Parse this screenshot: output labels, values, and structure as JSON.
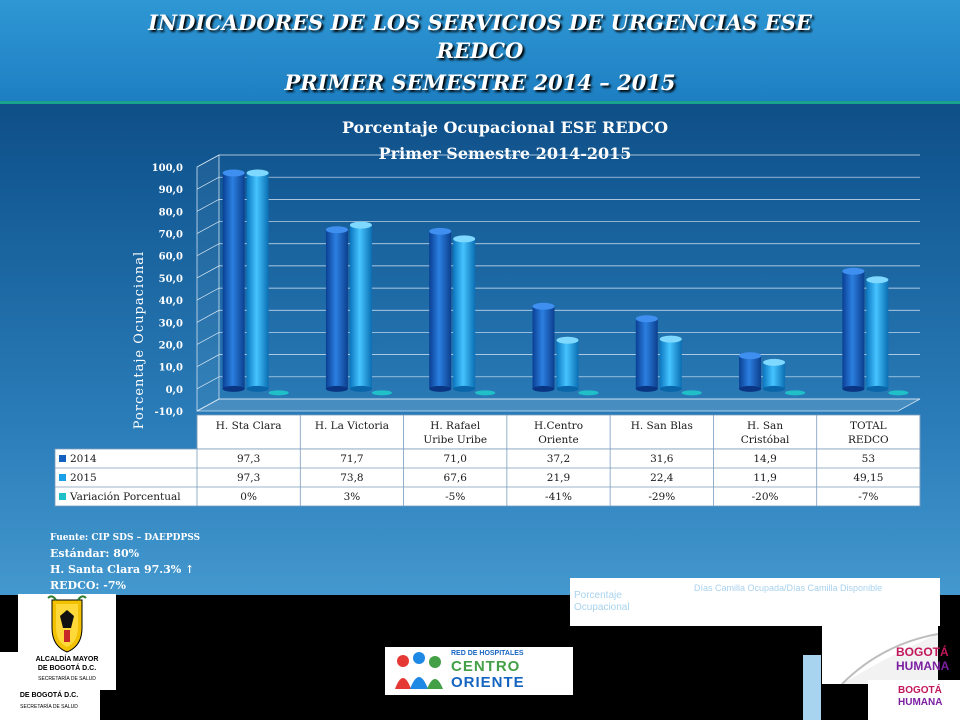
{
  "slide": {
    "title_lines": [
      "INDICADORES DE LOS SERVICIOS DE URGENCIAS ESE",
      "REDCO",
      "PRIMER SEMESTRE 2014 – 2015"
    ],
    "colors": {
      "series_2014": "#1460c0",
      "series_2015": "#1aa0e8",
      "series_var": "#20c0c8",
      "title_band": "#1d7fc2",
      "accent_line": "#17a38c"
    }
  },
  "chart_data": {
    "type": "bar",
    "title": "Porcentaje Ocupacional  ESE REDCO",
    "subtitle": "Primer Semestre 2014-2015",
    "ylabel": "Porcentaje Ocupacional",
    "xlabel": "",
    "ylim": [
      -10,
      100
    ],
    "yticks": [
      "100,0",
      "90,0",
      "80,0",
      "70,0",
      "60,0",
      "50,0",
      "40,0",
      "30,0",
      "20,0",
      "10,0",
      "0,0",
      "-10,0"
    ],
    "categories": [
      [
        "H. Sta Clara"
      ],
      [
        "H. La Victoria"
      ],
      [
        "H. Rafael",
        "Uribe Uribe"
      ],
      [
        "H.Centro",
        "Oriente"
      ],
      [
        "H. San Blas"
      ],
      [
        "H. San",
        "Cristóbal"
      ],
      [
        "TOTAL",
        "REDCO"
      ]
    ],
    "series": [
      {
        "name": "2014",
        "values": [
          97.3,
          71.7,
          71.0,
          37.2,
          31.6,
          14.9,
          53
        ],
        "labels": [
          "97,3",
          "71,7",
          "71,0",
          "37,2",
          "31,6",
          "14,9",
          "53"
        ]
      },
      {
        "name": "2015",
        "values": [
          97.3,
          73.8,
          67.6,
          21.9,
          22.4,
          11.9,
          49.15
        ],
        "labels": [
          "97,3",
          "73,8",
          "67,6",
          "21,9",
          "22,4",
          "11,9",
          "49,15"
        ]
      },
      {
        "name": "Variación Porcentual",
        "values": [
          0,
          0.03,
          -0.05,
          -0.41,
          -0.29,
          -0.2,
          -0.07
        ],
        "labels": [
          "0%",
          "3%",
          "-5%",
          "-41%",
          "-29%",
          "-20%",
          "-7%"
        ]
      }
    ],
    "data_table": true,
    "grid": true
  },
  "notes": {
    "source": "Fuente: CIP SDS – DAEPDPSS",
    "standard": "Estándar: 80%",
    "highlight": "H. Santa Clara 97.3%  ↑",
    "total": "REDCO:  -7%"
  },
  "definition": {
    "term": "Porcentaje Ocupacional",
    "formula": "Días Camilla Ocupada/Días Camilla Disponible"
  },
  "logos": {
    "alcaldia_line1": "ALCALDÍA MAYOR",
    "alcaldia_line2": "DE BOGOTÁ D.C.",
    "alcaldia_line3": "SECRETARÍA DE SALUD",
    "red_line1": "RED DE HOSPITALES",
    "red_line2": "CENTRO",
    "red_line3": "ORIENTE",
    "bogota_line1": "BOGOTÁ",
    "bogota_line2": "HUMANA"
  }
}
